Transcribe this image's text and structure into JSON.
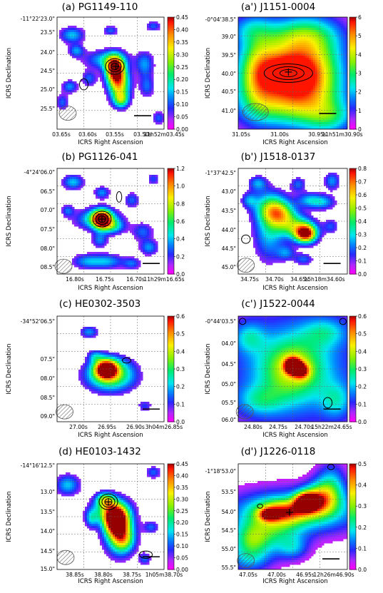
{
  "figure": {
    "panels": [
      {
        "id": "a",
        "title": "(a) PG1149-110",
        "xlabel": "ICRS Right Ascension",
        "ylabel": "ICRS Declination",
        "ra_ticks": [
          "03.65s",
          "03.60s",
          "03.55s",
          "03.50s",
          "11h52m03.45s"
        ],
        "dec_ticks": [
          "-11°22'23.0\"",
          "23.5\"",
          "24.0\"",
          "24.5\"",
          "25.0\"",
          "25.5\""
        ],
        "cbar_ticks": [
          "0.00",
          "0.05",
          "0.10",
          "0.15",
          "0.20",
          "0.25",
          "0.30",
          "0.35",
          "0.40",
          "0.45"
        ]
      },
      {
        "id": "a2",
        "title": "(a') J1151-0004",
        "xlabel": "ICRS Right Ascension",
        "ylabel": "ICRS Declination",
        "ra_ticks": [
          "31.05s",
          "31.00s",
          "30.95s",
          "11h51m30.90s"
        ],
        "dec_ticks": [
          "-0°04'38.5\"",
          "39.0\"",
          "39.5\"",
          "40.0\"",
          "40.5\"",
          "41.0\""
        ],
        "cbar_ticks": [
          "0",
          "1",
          "2",
          "3",
          "4",
          "5",
          "6"
        ]
      },
      {
        "id": "b",
        "title": "(b) PG1126-041",
        "xlabel": "ICRS Right Ascension",
        "ylabel": "ICRS Declination",
        "ra_ticks": [
          "16.80s",
          "16.75s",
          "16.70s",
          "11h29m16.65s"
        ],
        "dec_ticks": [
          "-4°24'06.0\"",
          "06.5\"",
          "07.0\"",
          "07.5\"",
          "08.0\"",
          "08.5\""
        ],
        "cbar_ticks": [
          "0.0",
          "0.2",
          "0.4",
          "0.6",
          "0.8",
          "1.0",
          "1.2"
        ]
      },
      {
        "id": "b2",
        "title": "(b') J1518-0137",
        "xlabel": "ICRS Right Ascension",
        "ylabel": "ICRS Declination",
        "ra_ticks": [
          "34.75s",
          "34.70s",
          "34.65s",
          "15h18m34.60s"
        ],
        "dec_ticks": [
          "-1°37'42.5\"",
          "43.0\"",
          "43.5\"",
          "44.0\"",
          "44.5\"",
          "45.0\""
        ],
        "cbar_ticks": [
          "0.0",
          "0.1",
          "0.2",
          "0.3",
          "0.4",
          "0.5",
          "0.6",
          "0.7",
          "0.8"
        ]
      },
      {
        "id": "c",
        "title": "(c) HE0302-3503",
        "xlabel": "ICRS Right Ascension",
        "ylabel": "ICRS Declination",
        "ra_ticks": [
          "27.00s",
          "26.95s",
          "26.90s",
          "3h04m26.85s"
        ],
        "dec_ticks": [
          "-34°52'06.5\"",
          "07.5\"",
          "08.0\"",
          "08.5\"",
          "09.0\""
        ],
        "cbar_ticks": [
          "0.0",
          "0.1",
          "0.2",
          "0.3",
          "0.4",
          "0.5",
          "0.6"
        ]
      },
      {
        "id": "c2",
        "title": "(c') J1522-0044",
        "xlabel": "ICRS Right Ascension",
        "ylabel": "ICRS Declination",
        "ra_ticks": [
          "24.80s",
          "24.75s",
          "24.70s",
          "15h22m24.65s"
        ],
        "dec_ticks": [
          "-0°44'03.5\"",
          "04.0\"",
          "04.5\"",
          "05.0\"",
          "05.5\"",
          "06.0\""
        ],
        "cbar_ticks": [
          "0.0",
          "0.1",
          "0.2",
          "0.3",
          "0.4",
          "0.5",
          "0.6"
        ]
      },
      {
        "id": "d",
        "title": "(d) HE0103-1432",
        "xlabel": "ICRS Right Ascension",
        "ylabel": "ICRS Declination",
        "ra_ticks": [
          "38.85s",
          "38.80s",
          "38.75s",
          "1h05m38.70s"
        ],
        "dec_ticks": [
          "-14°16'12.5\"",
          "13.0\"",
          "13.5\"",
          "14.0\"",
          "14.5\"",
          "15.0\""
        ],
        "cbar_ticks": [
          "0.00",
          "0.05",
          "0.10",
          "0.15",
          "0.20",
          "0.25",
          "0.30",
          "0.35",
          "0.40",
          "0.45"
        ]
      },
      {
        "id": "d2",
        "title": "(d') J1226-0118",
        "xlabel": "ICRS Right Ascension",
        "ylabel": "ICRS Declination",
        "ra_ticks": [
          "47.05s",
          "47.00s",
          "46.95s",
          "12h26m46.90s"
        ],
        "dec_ticks": [
          "-1°18'53.0\"",
          "53.5\"",
          "54.0\"",
          "54.5\"",
          "55.0\"",
          "55.5\""
        ],
        "cbar_ticks": [
          "0.0",
          "0.1",
          "0.2",
          "0.3",
          "0.4",
          "0.5"
        ]
      }
    ]
  },
  "chart_data": [
    {
      "type": "heatmap",
      "title": "(a) PG1149-110",
      "xlabel": "ICRS Right Ascension",
      "ylabel": "ICRS Declination",
      "colorbar_range": [
        0,
        0.45
      ],
      "colormap": "gist_ncar",
      "peak_value": 0.42,
      "overlays": [
        "black contours",
        "cross marker",
        "hatched beam ellipse",
        "scale bar"
      ]
    },
    {
      "type": "heatmap",
      "title": "(a') J1151-0004",
      "xlabel": "ICRS Right Ascension",
      "ylabel": "ICRS Declination",
      "colorbar_range": [
        0,
        6
      ],
      "colormap": "gist_ncar",
      "peak_value": 5.8
    },
    {
      "type": "heatmap",
      "title": "(b) PG1126-041",
      "xlabel": "ICRS Right Ascension",
      "ylabel": "ICRS Declination",
      "colorbar_range": [
        0,
        1.2
      ],
      "colormap": "gist_ncar",
      "peak_value": 1.1
    },
    {
      "type": "heatmap",
      "title": "(b') J1518-0137",
      "xlabel": "ICRS Right Ascension",
      "ylabel": "ICRS Declination",
      "colorbar_range": [
        0,
        0.8
      ],
      "colormap": "gist_ncar",
      "peak_value": 0.75
    },
    {
      "type": "heatmap",
      "title": "(c) HE0302-3503",
      "xlabel": "ICRS Right Ascension",
      "ylabel": "ICRS Declination",
      "colorbar_range": [
        0,
        0.6
      ],
      "colormap": "gist_ncar",
      "peak_value": 0.55
    },
    {
      "type": "heatmap",
      "title": "(c') J1522-0044",
      "xlabel": "ICRS Right Ascension",
      "ylabel": "ICRS Declination",
      "colorbar_range": [
        0,
        0.6
      ],
      "colormap": "gist_ncar",
      "peak_value": 0.58
    },
    {
      "type": "heatmap",
      "title": "(d) HE0103-1432",
      "xlabel": "ICRS Right Ascension",
      "ylabel": "ICRS Declination",
      "colorbar_range": [
        0,
        0.45
      ],
      "colormap": "gist_ncar",
      "peak_value": 0.43
    },
    {
      "type": "heatmap",
      "title": "(d') J1226-0118",
      "xlabel": "ICRS Right Ascension",
      "ylabel": "ICRS Declination",
      "colorbar_range": [
        0,
        0.5
      ],
      "colormap": "gist_ncar",
      "peak_value": 0.47
    }
  ]
}
